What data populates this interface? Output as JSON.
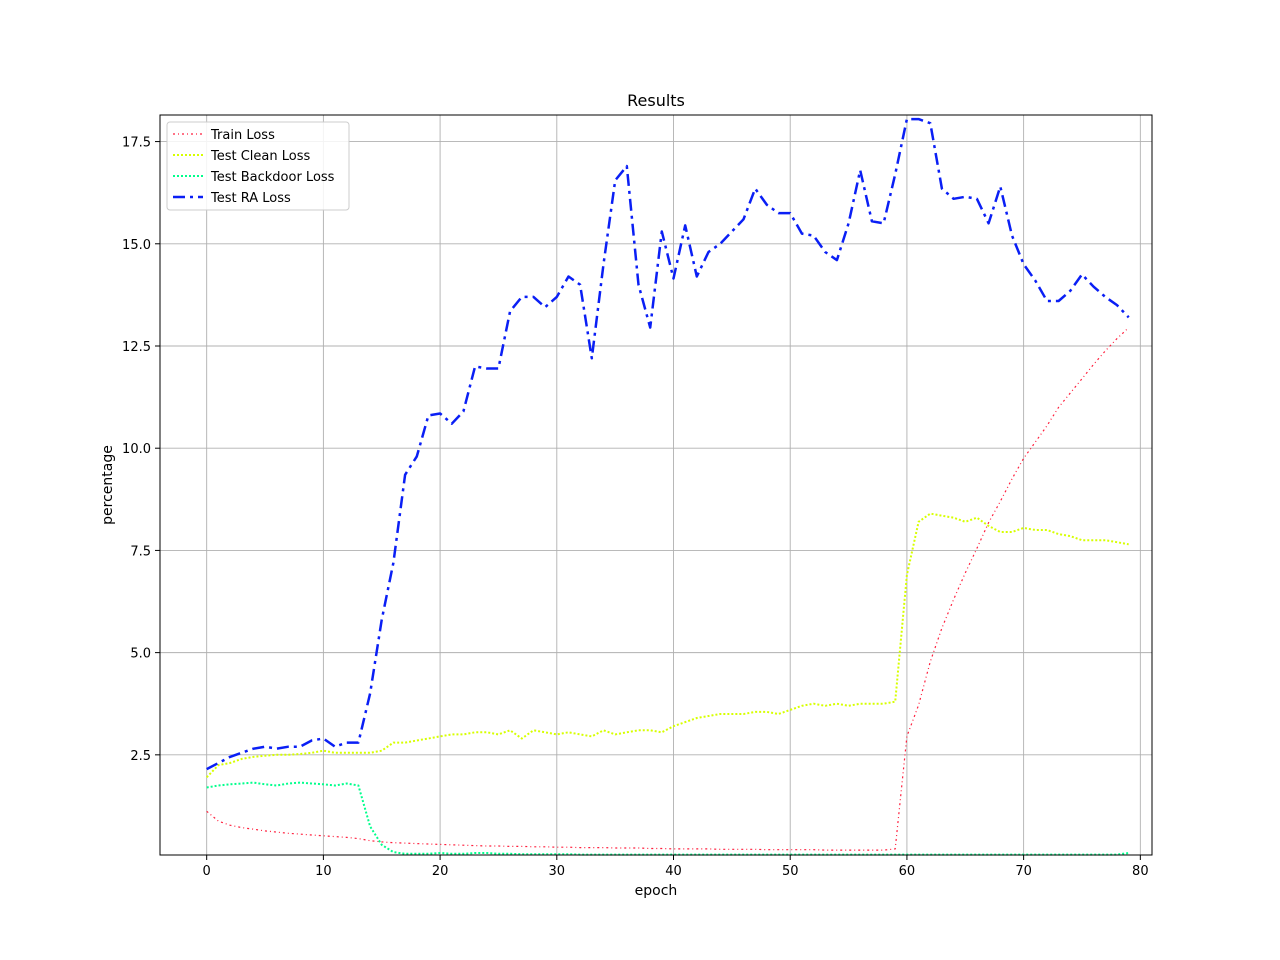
{
  "chart_data": {
    "type": "line",
    "title": "Results",
    "xlabel": "epoch",
    "ylabel": "percentage",
    "xlim": [
      -4,
      81
    ],
    "ylim": [
      0.05,
      18.15
    ],
    "xticks": [
      0,
      10,
      20,
      30,
      40,
      50,
      60,
      70,
      80
    ],
    "yticks": [
      2.5,
      5.0,
      7.5,
      10.0,
      12.5,
      15.0,
      17.5
    ],
    "xtick_labels": [
      "0",
      "10",
      "20",
      "30",
      "40",
      "50",
      "60",
      "70",
      "80"
    ],
    "ytick_labels": [
      "2.5",
      "5.0",
      "7.5",
      "10.0",
      "12.5",
      "15.0",
      "17.5"
    ],
    "grid": true,
    "legend_position": "top-left",
    "series": [
      {
        "name": "Train Loss",
        "color": "#ff1f3d",
        "dash": "2,3,1,3",
        "width": 1.2,
        "values": [
          1.12,
          0.88,
          0.78,
          0.72,
          0.68,
          0.64,
          0.61,
          0.58,
          0.56,
          0.54,
          0.52,
          0.5,
          0.48,
          0.45,
          0.4,
          0.37,
          0.35,
          0.34,
          0.33,
          0.32,
          0.31,
          0.3,
          0.29,
          0.28,
          0.27,
          0.27,
          0.26,
          0.26,
          0.25,
          0.25,
          0.24,
          0.24,
          0.23,
          0.23,
          0.23,
          0.22,
          0.22,
          0.22,
          0.21,
          0.21,
          0.2,
          0.2,
          0.2,
          0.2,
          0.19,
          0.19,
          0.19,
          0.19,
          0.18,
          0.18,
          0.18,
          0.18,
          0.18,
          0.17,
          0.17,
          0.17,
          0.17,
          0.17,
          0.17,
          0.2,
          2.95,
          3.72,
          4.78,
          5.6,
          6.3,
          6.95,
          7.55,
          8.18,
          8.7,
          9.25,
          9.75,
          10.15,
          10.55,
          11.0,
          11.35,
          11.7,
          12.05,
          12.38,
          12.68,
          12.95
        ]
      },
      {
        "name": "Test Clean Loss",
        "color": "#d7ff00",
        "dash": "2,2",
        "width": 2,
        "values": [
          1.95,
          2.25,
          2.3,
          2.4,
          2.45,
          2.48,
          2.5,
          2.5,
          2.52,
          2.55,
          2.6,
          2.55,
          2.55,
          2.55,
          2.55,
          2.6,
          2.8,
          2.8,
          2.85,
          2.9,
          2.95,
          3.0,
          3.0,
          3.05,
          3.05,
          3.0,
          3.1,
          2.9,
          3.1,
          3.05,
          3.0,
          3.05,
          3.0,
          2.95,
          3.1,
          3.0,
          3.05,
          3.1,
          3.1,
          3.05,
          3.2,
          3.3,
          3.4,
          3.45,
          3.5,
          3.5,
          3.5,
          3.55,
          3.55,
          3.5,
          3.6,
          3.7,
          3.75,
          3.7,
          3.75,
          3.7,
          3.75,
          3.75,
          3.75,
          3.8,
          6.9,
          8.2,
          8.4,
          8.35,
          8.3,
          8.2,
          8.3,
          8.1,
          7.95,
          7.95,
          8.05,
          8.0,
          8.0,
          7.9,
          7.85,
          7.75,
          7.75,
          7.75,
          7.7,
          7.65
        ]
      },
      {
        "name": "Test Backdoor Loss",
        "color": "#00ff8c",
        "dash": "2,2",
        "width": 2,
        "values": [
          1.7,
          1.75,
          1.78,
          1.8,
          1.82,
          1.78,
          1.75,
          1.8,
          1.82,
          1.8,
          1.78,
          1.75,
          1.8,
          1.75,
          0.75,
          0.3,
          0.12,
          0.08,
          0.08,
          0.08,
          0.1,
          0.08,
          0.08,
          0.1,
          0.1,
          0.08,
          0.08,
          0.07,
          0.07,
          0.07,
          0.07,
          0.07,
          0.06,
          0.06,
          0.06,
          0.06,
          0.06,
          0.06,
          0.06,
          0.06,
          0.06,
          0.06,
          0.06,
          0.06,
          0.06,
          0.06,
          0.06,
          0.06,
          0.06,
          0.06,
          0.06,
          0.06,
          0.06,
          0.06,
          0.06,
          0.06,
          0.06,
          0.06,
          0.06,
          0.06,
          0.06,
          0.06,
          0.06,
          0.06,
          0.06,
          0.06,
          0.06,
          0.06,
          0.06,
          0.06,
          0.06,
          0.06,
          0.06,
          0.06,
          0.06,
          0.06,
          0.06,
          0.06,
          0.06,
          0.1
        ]
      },
      {
        "name": "Test RA Loss",
        "color": "#0a1ff5",
        "dash": "12,5,3,5",
        "width": 2.5,
        "values": [
          2.15,
          2.3,
          2.45,
          2.55,
          2.65,
          2.7,
          2.65,
          2.7,
          2.7,
          2.85,
          2.9,
          2.7,
          2.8,
          2.8,
          4.0,
          5.8,
          7.2,
          9.35,
          9.8,
          10.8,
          10.85,
          10.6,
          10.9,
          12.0,
          11.95,
          11.95,
          13.35,
          13.7,
          13.7,
          13.45,
          13.7,
          14.2,
          14.0,
          12.2,
          14.5,
          16.55,
          16.9,
          14.0,
          12.95,
          15.3,
          14.15,
          15.45,
          14.2,
          14.8,
          15.0,
          15.3,
          15.6,
          16.35,
          15.95,
          15.75,
          15.75,
          15.25,
          15.2,
          14.8,
          14.6,
          15.5,
          16.8,
          15.55,
          15.5,
          16.7,
          18.05,
          18.05,
          17.95,
          16.35,
          16.1,
          16.15,
          16.1,
          15.5,
          16.4,
          15.2,
          14.5,
          14.1,
          13.6,
          13.6,
          13.85,
          14.25,
          13.95,
          13.7,
          13.5,
          13.2
        ]
      }
    ]
  }
}
